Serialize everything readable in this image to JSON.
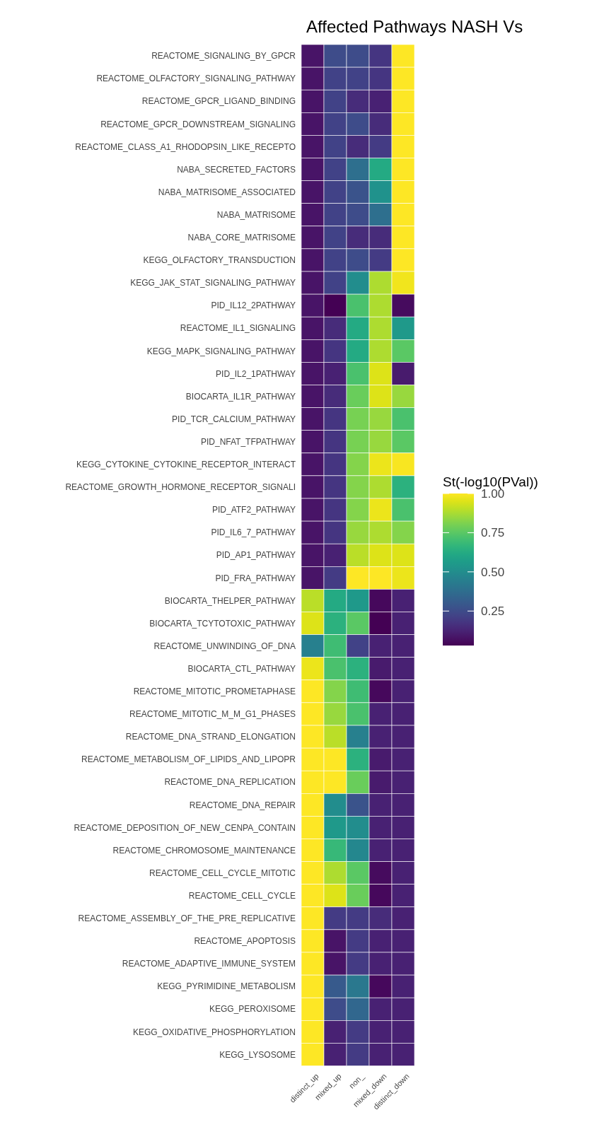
{
  "chart_data": {
    "type": "heatmap",
    "title": "Affected Pathways NASH Vs",
    "clabel": "St(-log10(PVal))",
    "categories": [
      "distinct_up",
      "mixed_up",
      "non_",
      "mixed_down",
      "distinct_down"
    ],
    "y_categories": [
      "REACTOME_SIGNALING_BY_GPCR",
      "REACTOME_OLFACTORY_SIGNALING_PATHWAY",
      "REACTOME_GPCR_LIGAND_BINDING",
      "REACTOME_GPCR_DOWNSTREAM_SIGNALING",
      "REACTOME_CLASS_A1_RHODOPSIN_LIKE_RECEPTO",
      "NABA_SECRETED_FACTORS",
      "NABA_MATRISOME_ASSOCIATED",
      "NABA_MATRISOME",
      "NABA_CORE_MATRISOME",
      "KEGG_OLFACTORY_TRANSDUCTION",
      "KEGG_JAK_STAT_SIGNALING_PATHWAY",
      "PID_IL12_2PATHWAY",
      "REACTOME_IL1_SIGNALING",
      "KEGG_MAPK_SIGNALING_PATHWAY",
      "PID_IL2_1PATHWAY",
      "BIOCARTA_IL1R_PATHWAY",
      "PID_TCR_CALCIUM_PATHWAY",
      "PID_NFAT_TFPATHWAY",
      "KEGG_CYTOKINE_CYTOKINE_RECEPTOR_INTERACT",
      "REACTOME_GROWTH_HORMONE_RECEPTOR_SIGNALI",
      "PID_ATF2_PATHWAY",
      "PID_IL6_7_PATHWAY",
      "PID_AP1_PATHWAY",
      "PID_FRA_PATHWAY",
      "BIOCARTA_THELPER_PATHWAY",
      "BIOCARTA_TCYTOTOXIC_PATHWAY",
      "REACTOME_UNWINDING_OF_DNA",
      "BIOCARTA_CTL_PATHWAY",
      "REACTOME_MITOTIC_PROMETAPHASE",
      "REACTOME_MITOTIC_M_M_G1_PHASES",
      "REACTOME_DNA_STRAND_ELONGATION",
      "REACTOME_METABOLISM_OF_LIPIDS_AND_LIPOPR",
      "REACTOME_DNA_REPLICATION",
      "REACTOME_DNA_REPAIR",
      "REACTOME_DEPOSITION_OF_NEW_CENPA_CONTAIN",
      "REACTOME_CHROMOSOME_MAINTENANCE",
      "REACTOME_CELL_CYCLE_MITOTIC",
      "REACTOME_CELL_CYCLE",
      "REACTOME_ASSEMBLY_OF_THE_PRE_REPLICATIVE",
      "REACTOME_APOPTOSIS",
      "REACTOME_ADAPTIVE_IMMUNE_SYSTEM",
      "KEGG_PYRIMIDINE_METABOLISM",
      "KEGG_PEROXISOME",
      "KEGG_OXIDATIVE_PHOSPHORYLATION",
      "KEGG_LYSOSOME"
    ],
    "cells": [
      [
        0.08,
        0.25,
        0.25,
        0.18,
        1.0
      ],
      [
        0.08,
        0.22,
        0.22,
        0.18,
        1.0
      ],
      [
        0.08,
        0.22,
        0.15,
        0.12,
        1.0
      ],
      [
        0.08,
        0.22,
        0.25,
        0.15,
        1.0
      ],
      [
        0.08,
        0.22,
        0.15,
        0.2,
        1.0
      ],
      [
        0.08,
        0.22,
        0.38,
        0.62,
        1.0
      ],
      [
        0.08,
        0.22,
        0.28,
        0.52,
        1.0
      ],
      [
        0.08,
        0.22,
        0.25,
        0.38,
        1.0
      ],
      [
        0.08,
        0.22,
        0.15,
        0.15,
        1.0
      ],
      [
        0.08,
        0.22,
        0.25,
        0.2,
        1.0
      ],
      [
        0.08,
        0.22,
        0.5,
        0.88,
        0.98
      ],
      [
        0.08,
        0.03,
        0.72,
        0.88,
        0.06
      ],
      [
        0.08,
        0.15,
        0.62,
        0.88,
        0.55
      ],
      [
        0.08,
        0.18,
        0.62,
        0.88,
        0.75
      ],
      [
        0.08,
        0.12,
        0.72,
        0.95,
        0.1
      ],
      [
        0.08,
        0.15,
        0.78,
        0.95,
        0.85
      ],
      [
        0.08,
        0.18,
        0.8,
        0.85,
        0.72
      ],
      [
        0.08,
        0.18,
        0.8,
        0.85,
        0.75
      ],
      [
        0.08,
        0.18,
        0.82,
        0.97,
        0.99
      ],
      [
        0.08,
        0.18,
        0.82,
        0.88,
        0.65
      ],
      [
        0.08,
        0.18,
        0.82,
        0.97,
        0.72
      ],
      [
        0.08,
        0.18,
        0.85,
        0.88,
        0.82
      ],
      [
        0.08,
        0.12,
        0.9,
        0.95,
        0.95
      ],
      [
        0.08,
        0.2,
        1.0,
        1.0,
        0.97
      ],
      [
        0.9,
        0.62,
        0.55,
        0.05,
        0.12
      ],
      [
        0.95,
        0.65,
        0.75,
        0.03,
        0.12
      ],
      [
        0.45,
        0.7,
        0.22,
        0.12,
        0.12
      ],
      [
        0.97,
        0.72,
        0.65,
        0.1,
        0.12
      ],
      [
        1.0,
        0.82,
        0.7,
        0.05,
        0.12
      ],
      [
        1.0,
        0.85,
        0.72,
        0.12,
        0.12
      ],
      [
        1.0,
        0.9,
        0.45,
        0.12,
        0.12
      ],
      [
        1.0,
        1.0,
        0.65,
        0.1,
        0.12
      ],
      [
        1.0,
        1.0,
        0.78,
        0.1,
        0.12
      ],
      [
        1.0,
        0.5,
        0.28,
        0.12,
        0.12
      ],
      [
        1.0,
        0.55,
        0.5,
        0.12,
        0.12
      ],
      [
        1.0,
        0.68,
        0.48,
        0.12,
        0.12
      ],
      [
        1.0,
        0.88,
        0.75,
        0.06,
        0.12
      ],
      [
        1.0,
        0.95,
        0.78,
        0.05,
        0.12
      ],
      [
        1.0,
        0.2,
        0.2,
        0.15,
        0.12
      ],
      [
        1.0,
        0.08,
        0.2,
        0.12,
        0.12
      ],
      [
        1.0,
        0.08,
        0.2,
        0.12,
        0.12
      ],
      [
        1.0,
        0.3,
        0.42,
        0.05,
        0.12
      ],
      [
        1.0,
        0.25,
        0.35,
        0.12,
        0.12
      ],
      [
        1.0,
        0.12,
        0.2,
        0.12,
        0.12
      ],
      [
        1.0,
        0.12,
        0.2,
        0.12,
        0.12
      ]
    ],
    "clim": [
      0.03,
      1.0
    ],
    "cticks": [
      {
        "value": 0.25,
        "label": "0.25"
      },
      {
        "value": 0.5,
        "label": "0.50"
      },
      {
        "value": 0.75,
        "label": "0.75"
      },
      {
        "value": 1.0,
        "label": "1.00"
      }
    ]
  }
}
